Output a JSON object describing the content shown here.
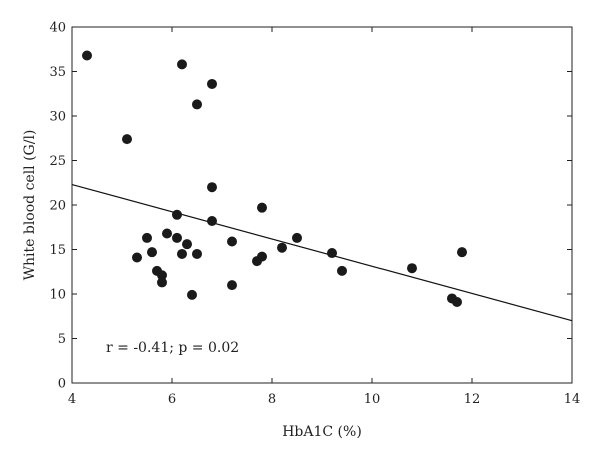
{
  "chart_data": {
    "type": "scatter",
    "xlabel": "HbA1C (%)",
    "ylabel": "White blood cell (G/l)",
    "xlim": [
      4,
      14
    ],
    "ylim": [
      0,
      40
    ],
    "x_ticks": [
      4,
      6,
      8,
      10,
      12,
      14
    ],
    "y_ticks": [
      0,
      5,
      10,
      15,
      20,
      25,
      30,
      35,
      40
    ],
    "grid": false,
    "annotation": "r = -0.41; p = 0.02",
    "regression_line": {
      "x": [
        4,
        14
      ],
      "y": [
        22.3,
        7.0
      ]
    },
    "points": [
      {
        "x": 4.3,
        "y": 36.8
      },
      {
        "x": 5.1,
        "y": 27.4
      },
      {
        "x": 5.3,
        "y": 14.1
      },
      {
        "x": 5.5,
        "y": 16.3
      },
      {
        "x": 5.6,
        "y": 14.7
      },
      {
        "x": 5.7,
        "y": 12.6
      },
      {
        "x": 5.8,
        "y": 12.1
      },
      {
        "x": 5.8,
        "y": 11.3
      },
      {
        "x": 5.9,
        "y": 16.8
      },
      {
        "x": 6.1,
        "y": 18.9
      },
      {
        "x": 6.1,
        "y": 16.3
      },
      {
        "x": 6.2,
        "y": 14.5
      },
      {
        "x": 6.2,
        "y": 35.8
      },
      {
        "x": 6.3,
        "y": 15.6
      },
      {
        "x": 6.4,
        "y": 9.9
      },
      {
        "x": 6.5,
        "y": 14.5
      },
      {
        "x": 6.5,
        "y": 31.3
      },
      {
        "x": 6.8,
        "y": 33.6
      },
      {
        "x": 6.8,
        "y": 22.0
      },
      {
        "x": 6.8,
        "y": 18.2
      },
      {
        "x": 7.2,
        "y": 15.9
      },
      {
        "x": 7.2,
        "y": 11.0
      },
      {
        "x": 7.7,
        "y": 13.7
      },
      {
        "x": 7.8,
        "y": 19.7
      },
      {
        "x": 7.8,
        "y": 14.2
      },
      {
        "x": 8.2,
        "y": 15.2
      },
      {
        "x": 8.5,
        "y": 16.3
      },
      {
        "x": 9.2,
        "y": 14.6
      },
      {
        "x": 9.4,
        "y": 12.6
      },
      {
        "x": 10.8,
        "y": 12.9
      },
      {
        "x": 11.6,
        "y": 9.5
      },
      {
        "x": 11.7,
        "y": 9.1
      },
      {
        "x": 11.8,
        "y": 14.7
      }
    ]
  }
}
